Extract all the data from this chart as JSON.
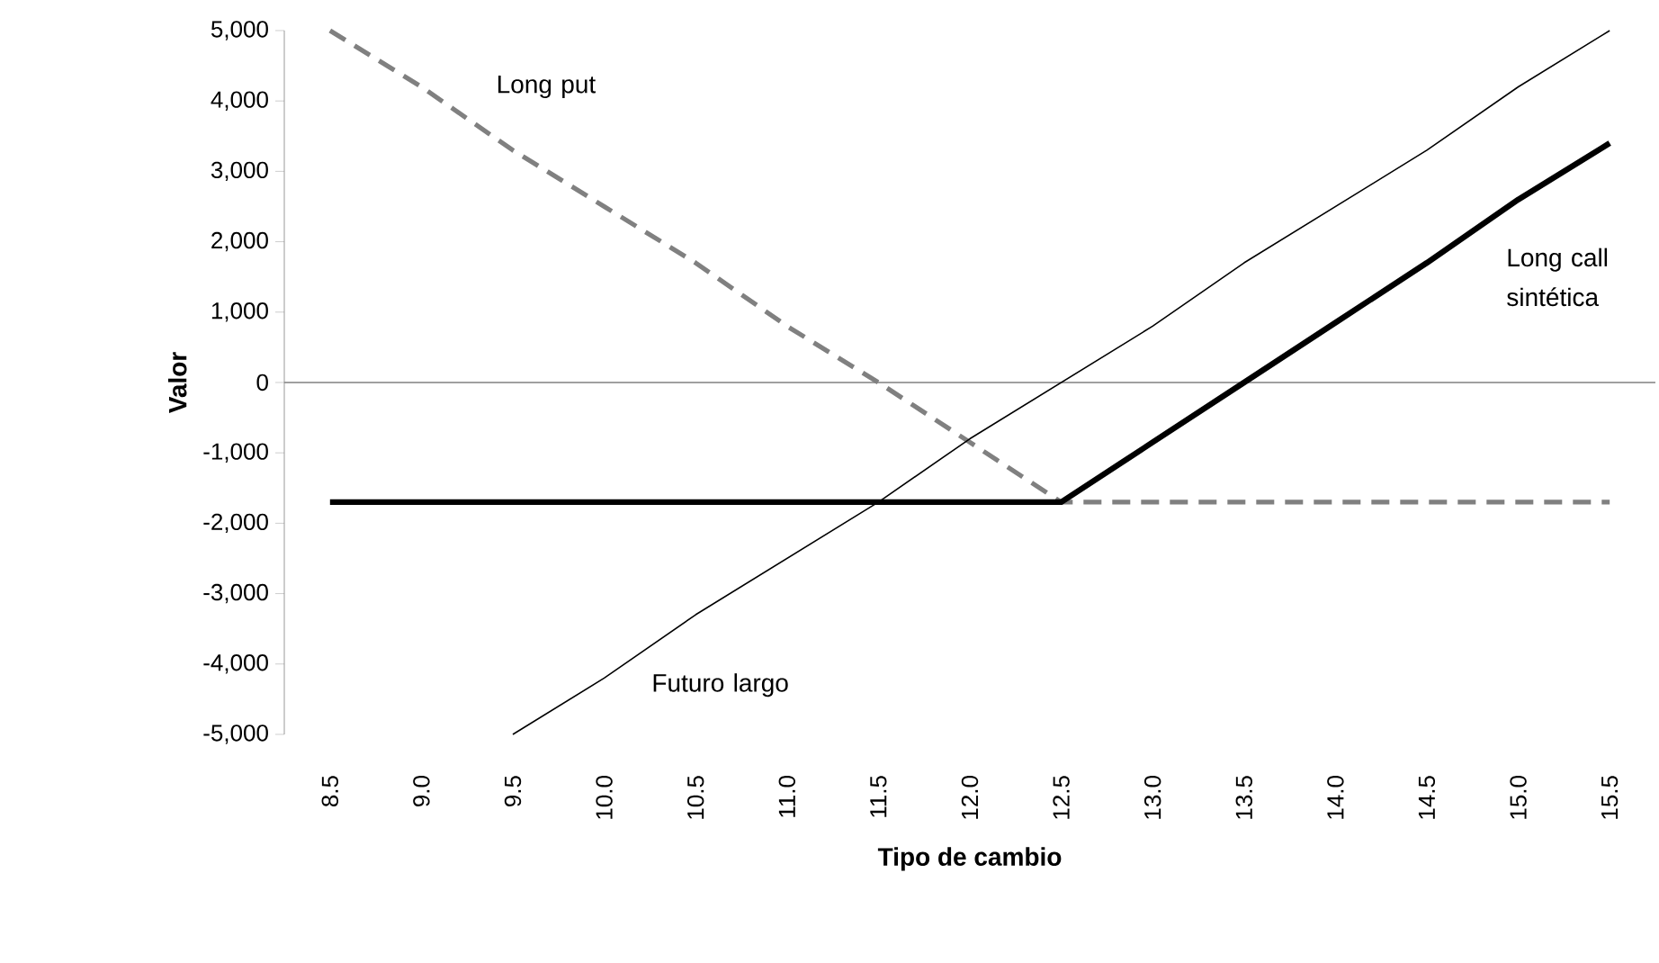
{
  "chart_data": {
    "type": "line",
    "xlabel": "Tipo de cambio",
    "ylabel": "Valor",
    "categories": [
      "8.5",
      "9.0",
      "9.5",
      "10.0",
      "10.5",
      "11.0",
      "11.5",
      "12.0",
      "12.5",
      "13.0",
      "13.5",
      "14.0",
      "14.5",
      "15.0",
      "15.5"
    ],
    "series": [
      {
        "name": "Long put",
        "color": "#808080",
        "line_style": "dashed",
        "values": [
          5000,
          4200,
          3300,
          2500,
          1700,
          800,
          0,
          -850,
          -1700,
          -1700,
          -1700,
          -1700,
          -1700,
          -1700,
          -1700
        ]
      },
      {
        "name": "Futuro largo",
        "color": "#000000",
        "line_style": "solid",
        "values": [
          null,
          null,
          -5000,
          -4200,
          -3300,
          -2500,
          -1700,
          -800,
          0,
          800,
          1700,
          2500,
          3300,
          4200,
          5000
        ]
      },
      {
        "name": "Long call sintética",
        "color": "#000000",
        "line_style": "solid",
        "values": [
          -1700,
          -1700,
          -1700,
          -1700,
          -1700,
          -1700,
          -1700,
          -1700,
          -1700,
          -850,
          0,
          850,
          1700,
          2600,
          3400
        ]
      }
    ],
    "ylim": [
      -5000,
      5000
    ],
    "yticks": [
      {
        "value": -5000,
        "label": "-5,000"
      },
      {
        "value": -4000,
        "label": "-4,000"
      },
      {
        "value": -3000,
        "label": "-3,000"
      },
      {
        "value": -2000,
        "label": "-2,000"
      },
      {
        "value": -1000,
        "label": "-1,000"
      },
      0,
      {
        "value": 1000,
        "label": "1,000"
      },
      {
        "value": 2000,
        "label": "2,000"
      },
      {
        "value": 3000,
        "label": "3,000"
      },
      {
        "value": 4000,
        "label": "4,000"
      },
      {
        "value": 5000,
        "label": "5,000"
      }
    ],
    "ref_lines": [
      {
        "axis": "y",
        "value": 0,
        "color": "#808080"
      }
    ],
    "grid": false,
    "legend": false,
    "marker": "none"
  }
}
